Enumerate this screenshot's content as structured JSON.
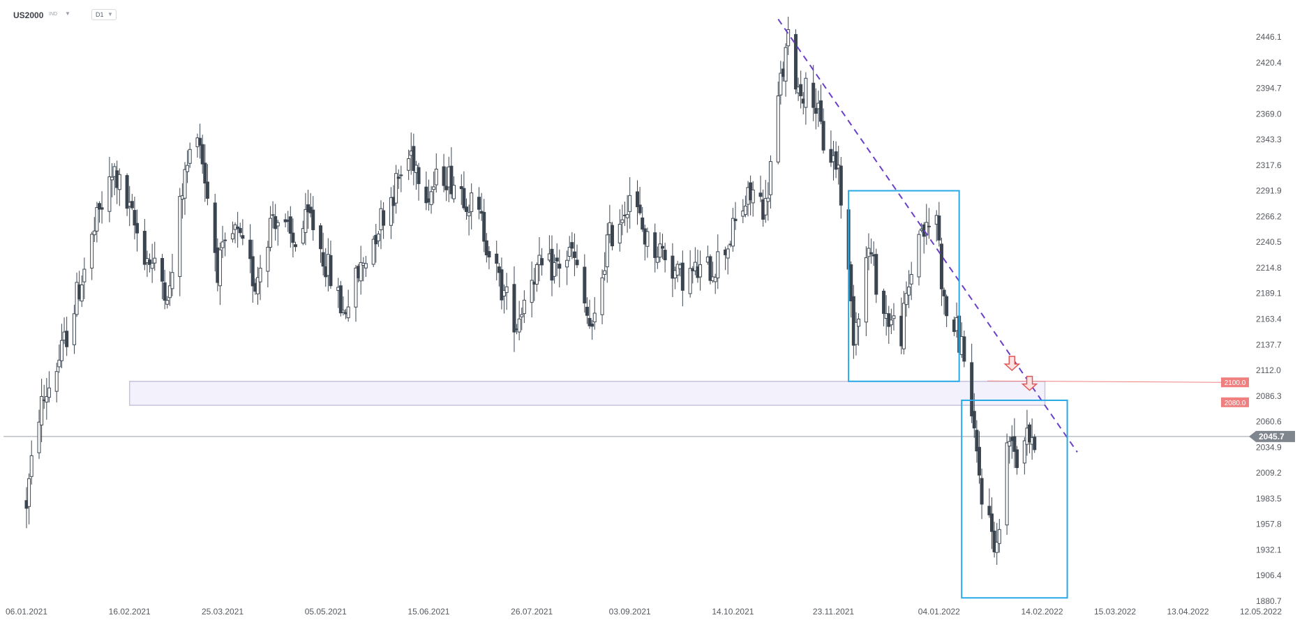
{
  "header": {
    "symbol": "US2000",
    "symbol_type": "IND",
    "timeframe": "D1"
  },
  "chart_data": {
    "type": "candlestick",
    "y_ticks": [
      "2446.1",
      "2420.4",
      "2394.7",
      "2369.0",
      "2343.3",
      "2317.6",
      "2291.9",
      "2266.2",
      "2240.5",
      "2214.8",
      "2189.1",
      "2163.4",
      "2137.7",
      "2112.0",
      "2086.3",
      "2060.6",
      "2034.9",
      "2009.2",
      "1983.5",
      "1957.8",
      "1932.1",
      "1906.4",
      "1880.7"
    ],
    "x_ticks": [
      "06.01.2021",
      "16.02.2021",
      "25.03.2021",
      "05.05.2021",
      "15.06.2021",
      "26.07.2021",
      "03.09.2021",
      "14.10.2021",
      "23.11.2021",
      "04.01.2022",
      "14.02.2022",
      "15.03.2022",
      "13.04.2022",
      "12.05.2022"
    ],
    "ylim": [
      1880.7,
      2446.1
    ],
    "last_price": "2045.7",
    "levels": [
      {
        "label": "2100.0",
        "value": 2100.0,
        "color": "#f08080"
      },
      {
        "label": "2080.0",
        "value": 2080.0,
        "color": "#f08080"
      }
    ],
    "current_price_line": 2045.7,
    "support_zone": {
      "from": 2077.0,
      "to": 2101.0,
      "start": "16.02.2021",
      "end": "14.02.2022"
    },
    "trendline": {
      "from": {
        "date": "01.11.2021",
        "price": 2464.0
      },
      "to": {
        "date": "28.02.2022",
        "price": 2030.0
      }
    },
    "boxes": [
      {
        "from_date": "29.11.2021",
        "to_date": "12.01.2022",
        "top": 2292.0,
        "bottom": 2101.0,
        "color": "#29a8e6"
      },
      {
        "from_date": "13.01.2022",
        "to_date": "24.02.2022",
        "top": 2082.0,
        "bottom": 1884.0,
        "color": "#29a8e6"
      }
    ],
    "arrows": [
      {
        "date": "02.02.2022",
        "price": 2112.0
      },
      {
        "date": "09.02.2022",
        "price": 2092.0
      }
    ],
    "anchors": [
      {
        "date": "06.01.2021",
        "price": 1980.0
      },
      {
        "date": "11.01.2021",
        "price": 2070.0
      },
      {
        "date": "20.01.2021",
        "price": 2130.0
      },
      {
        "date": "04.02.2021",
        "price": 2270.0
      },
      {
        "date": "10.02.2021",
        "price": 2310.0
      },
      {
        "date": "22.02.2021",
        "price": 2230.0
      },
      {
        "date": "04.03.2021",
        "price": 2190.0
      },
      {
        "date": "09.03.2021",
        "price": 2295.0
      },
      {
        "date": "15.03.2021",
        "price": 2360.0
      },
      {
        "date": "23.03.2021",
        "price": 2215.0
      },
      {
        "date": "30.03.2021",
        "price": 2250.0
      },
      {
        "date": "07.04.2021",
        "price": 2200.0
      },
      {
        "date": "14.04.2021",
        "price": 2270.0
      },
      {
        "date": "22.04.2021",
        "price": 2240.0
      },
      {
        "date": "29.04.2021",
        "price": 2265.0
      },
      {
        "date": "05.05.2021",
        "price": 2220.0
      },
      {
        "date": "12.05.2021",
        "price": 2170.0
      },
      {
        "date": "20.05.2021",
        "price": 2220.0
      },
      {
        "date": "27.05.2021",
        "price": 2265.0
      },
      {
        "date": "08.06.2021",
        "price": 2330.0
      },
      {
        "date": "15.06.2021",
        "price": 2290.0
      },
      {
        "date": "21.06.2021",
        "price": 2310.0
      },
      {
        "date": "28.06.2021",
        "price": 2295.0
      },
      {
        "date": "06.07.2021",
        "price": 2260.0
      },
      {
        "date": "13.07.2021",
        "price": 2200.0
      },
      {
        "date": "20.07.2021",
        "price": 2160.0
      },
      {
        "date": "26.07.2021",
        "price": 2210.0
      },
      {
        "date": "04.08.2021",
        "price": 2215.0
      },
      {
        "date": "11.08.2021",
        "price": 2230.0
      },
      {
        "date": "19.08.2021",
        "price": 2145.0
      },
      {
        "date": "25.08.2021",
        "price": 2240.0
      },
      {
        "date": "31.08.2021",
        "price": 2270.0
      },
      {
        "date": "03.09.2021",
        "price": 2290.0
      },
      {
        "date": "10.09.2021",
        "price": 2240.0
      },
      {
        "date": "17.09.2021",
        "price": 2230.0
      },
      {
        "date": "22.09.2021",
        "price": 2205.0
      },
      {
        "date": "30.09.2021",
        "price": 2210.0
      },
      {
        "date": "06.10.2021",
        "price": 2215.0
      },
      {
        "date": "12.10.2021",
        "price": 2240.0
      },
      {
        "date": "18.10.2021",
        "price": 2275.0
      },
      {
        "date": "22.10.2021",
        "price": 2290.0
      },
      {
        "date": "27.10.2021",
        "price": 2275.0
      },
      {
        "date": "02.11.2021",
        "price": 2400.0
      },
      {
        "date": "05.11.2021",
        "price": 2440.0
      },
      {
        "date": "09.11.2021",
        "price": 2395.0
      },
      {
        "date": "15.11.2021",
        "price": 2390.0
      },
      {
        "date": "19.11.2021",
        "price": 2340.0
      },
      {
        "date": "25.11.2021",
        "price": 2315.0
      },
      {
        "date": "01.12.2021",
        "price": 2150.0
      },
      {
        "date": "07.12.2021",
        "price": 2235.0
      },
      {
        "date": "13.12.2021",
        "price": 2170.0
      },
      {
        "date": "20.12.2021",
        "price": 2150.0
      },
      {
        "date": "27.12.2021",
        "price": 2255.0
      },
      {
        "date": "30.12.2021",
        "price": 2250.0
      },
      {
        "date": "03.01.2022",
        "price": 2270.0
      },
      {
        "date": "06.01.2022",
        "price": 2175.0
      },
      {
        "date": "11.01.2022",
        "price": 2150.0
      },
      {
        "date": "14.01.2022",
        "price": 2130.0
      },
      {
        "date": "18.01.2022",
        "price": 2040.0
      },
      {
        "date": "21.01.2022",
        "price": 1990.0
      },
      {
        "date": "24.01.2022",
        "price": 1960.0
      },
      {
        "date": "27.01.2022",
        "price": 1935.0
      },
      {
        "date": "31.01.2022",
        "price": 2030.0
      },
      {
        "date": "02.02.2022",
        "price": 2055.0
      },
      {
        "date": "04.02.2022",
        "price": 2020.0
      },
      {
        "date": "08.02.2022",
        "price": 2060.0
      },
      {
        "date": "10.02.2022",
        "price": 2030.0
      },
      {
        "date": "11.02.2022",
        "price": 2045.7
      }
    ]
  }
}
